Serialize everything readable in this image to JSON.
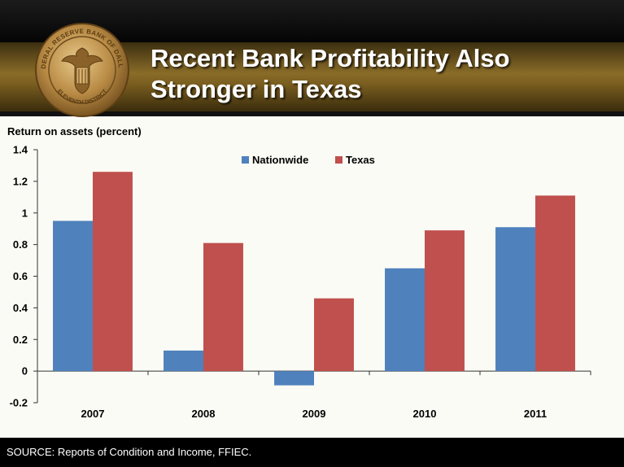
{
  "slide": {
    "title_line1": "Recent Bank Profitability Also",
    "title_line2": "Stronger in Texas",
    "source": "SOURCE: Reports of Condition and Income, FFIEC.",
    "seal_text_top": "FEDERAL RESERVE BANK OF DALLAS",
    "seal_text_bottom": "ELEVENTH DISTRICT"
  },
  "colors": {
    "nationwide": "#4f81bd",
    "texas": "#c0504d"
  },
  "chart_data": {
    "type": "bar",
    "ylabel": "Return on assets (percent)",
    "categories": [
      "2007",
      "2008",
      "2009",
      "2010",
      "2011"
    ],
    "series": [
      {
        "name": "Nationwide",
        "values": [
          0.95,
          0.13,
          -0.09,
          0.65,
          0.91
        ]
      },
      {
        "name": "Texas",
        "values": [
          1.26,
          0.81,
          0.46,
          0.89,
          1.11
        ]
      }
    ],
    "ylim": [
      -0.2,
      1.4
    ],
    "yticks": [
      -0.2,
      0,
      0.2,
      0.4,
      0.6,
      0.8,
      1,
      1.2,
      1.4
    ],
    "ytick_labels": [
      "-0.2",
      "0",
      "0.2",
      "0.4",
      "0.6",
      "0.8",
      "1",
      "1.2",
      "1.4"
    ],
    "legend_position": "top-center",
    "grid": false
  }
}
